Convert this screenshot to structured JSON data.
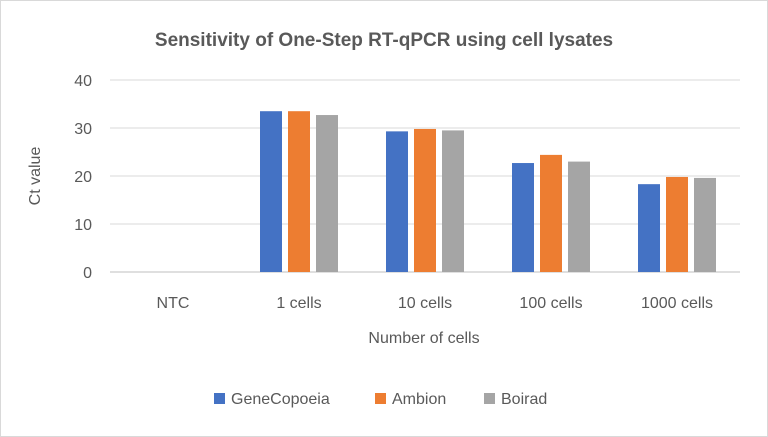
{
  "chart_data": {
    "type": "bar",
    "title": "Sensitivity of One-Step RT-qPCR using cell lysates",
    "xlabel": "Number of cells",
    "ylabel": "Ct value",
    "categories": [
      "NTC",
      "1 cells",
      "10 cells",
      "100 cells",
      "1000 cells"
    ],
    "series": [
      {
        "name": "GeneCopoeia",
        "color": "#4472c4",
        "values": [
          0,
          33.5,
          29.3,
          22.7,
          18.3
        ]
      },
      {
        "name": "Ambion",
        "color": "#ed7d31",
        "values": [
          0,
          33.5,
          29.8,
          24.4,
          19.8
        ]
      },
      {
        "name": "Boirad",
        "color": "#a5a5a5",
        "values": [
          0,
          32.7,
          29.5,
          23.0,
          19.6
        ]
      }
    ],
    "ylim": [
      0,
      40
    ],
    "yticks": [
      0,
      10,
      20,
      30,
      40
    ],
    "grid": true,
    "legend": "bottom"
  }
}
